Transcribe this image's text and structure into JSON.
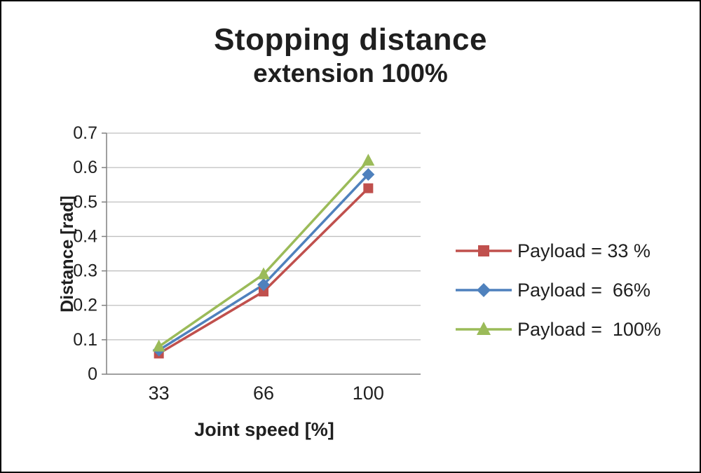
{
  "chart_data": {
    "type": "line",
    "title": "Stopping distance",
    "subtitle": "extension 100%",
    "xlabel": "Joint speed [%]",
    "ylabel": "Distance [rad]",
    "categories": [
      "33",
      "66",
      "100"
    ],
    "ylim": [
      0,
      0.7
    ],
    "ytick_step": 0.1,
    "grid": true,
    "legend_position": "right",
    "colors": {
      "gridline": "#bfbfbf",
      "axis": "#808080",
      "text": "#1f1f1f"
    },
    "series": [
      {
        "name": "Payload = 33 %",
        "marker": "square",
        "color": "#C0504D",
        "values": [
          0.06,
          0.24,
          0.54
        ]
      },
      {
        "name": "Payload =  66%",
        "marker": "diamond",
        "color": "#4F81BD",
        "values": [
          0.07,
          0.26,
          0.58
        ]
      },
      {
        "name": "Payload =  100%",
        "marker": "triangle",
        "color": "#9BBB59",
        "values": [
          0.08,
          0.29,
          0.62
        ]
      }
    ]
  }
}
